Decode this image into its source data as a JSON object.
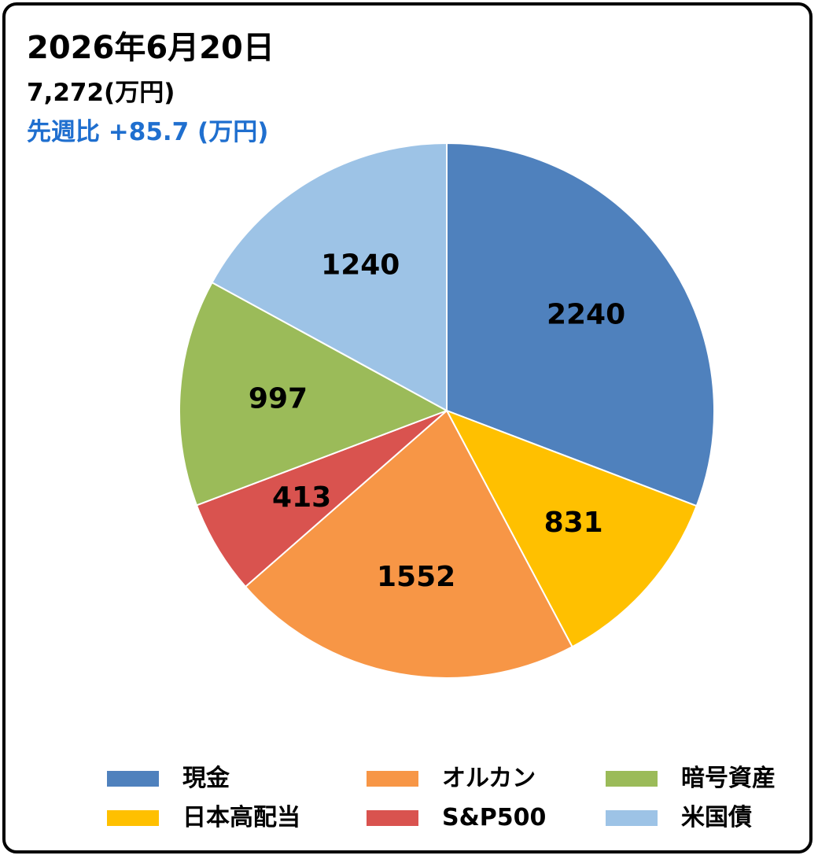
{
  "header": {
    "date": "2026年6月20日",
    "total": "7,272(万円)",
    "weekly_change": "先週比 +85.7 (万円)"
  },
  "chart_data": {
    "type": "pie",
    "categories": [
      "現金",
      "日本高配当",
      "オルカン",
      "S&P500",
      "暗号資産",
      "米国債"
    ],
    "values": [
      2240,
      831,
      1552,
      413,
      997,
      1240
    ],
    "value_labels": [
      "2240",
      "831",
      "1552",
      "413",
      "997",
      "1240"
    ],
    "colors": [
      "#4f81bd",
      "#ffc000",
      "#f79646",
      "#d9534f",
      "#9bbb59",
      "#9dc3e6"
    ],
    "start_angle": "12 o'clock",
    "direction": "clockwise",
    "legend_position": "bottom"
  },
  "legend": {
    "items": [
      {
        "label": "現金",
        "color": "#4f81bd"
      },
      {
        "label": "オルカン",
        "color": "#f79646"
      },
      {
        "label": "暗号資産",
        "color": "#9bbb59"
      },
      {
        "label": "日本高配当",
        "color": "#ffc000"
      },
      {
        "label": "S&P500",
        "color": "#d9534f"
      },
      {
        "label": "米国債",
        "color": "#9dc3e6"
      }
    ]
  }
}
